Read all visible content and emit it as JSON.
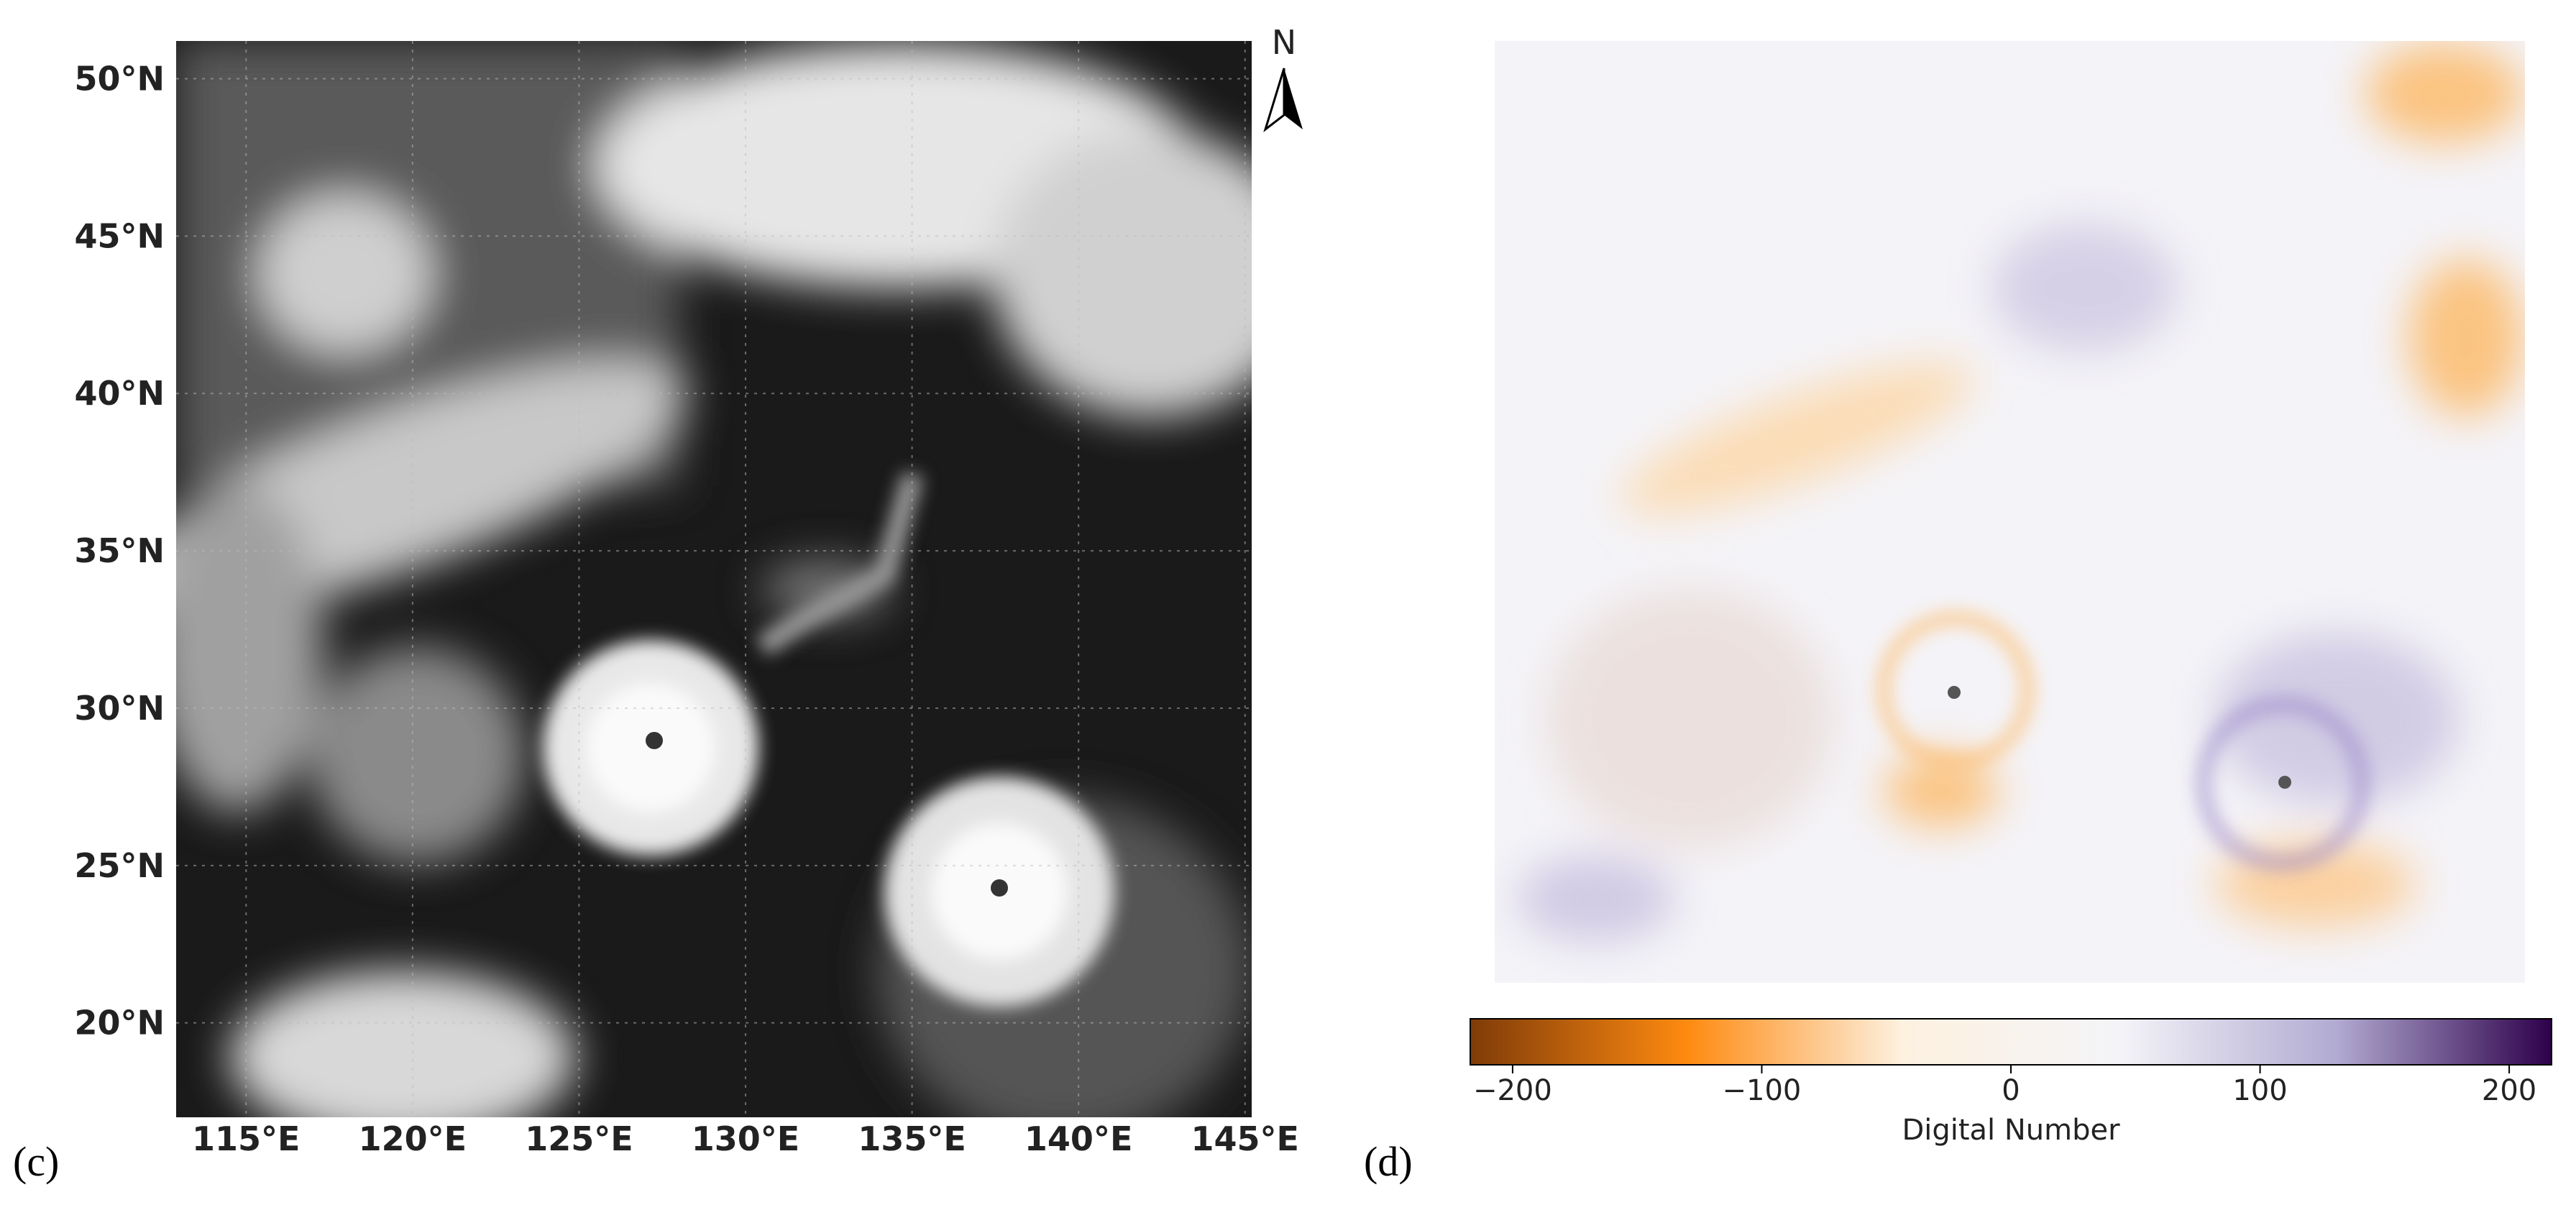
{
  "panel_c": {
    "label": "(c)",
    "north": "N",
    "xlim": [
      112.9,
      145.2
    ],
    "ylim": [
      17.0,
      51.2
    ],
    "xticks": [
      {
        "value": 115,
        "label": "115°E"
      },
      {
        "value": 120,
        "label": "120°E"
      },
      {
        "value": 125,
        "label": "125°E"
      },
      {
        "value": 130,
        "label": "130°E"
      },
      {
        "value": 135,
        "label": "135°E"
      },
      {
        "value": 140,
        "label": "140°E"
      },
      {
        "value": 145,
        "label": "145°E"
      }
    ],
    "yticks": [
      {
        "value": 20,
        "label": "20°N"
      },
      {
        "value": 25,
        "label": "25°N"
      },
      {
        "value": 30,
        "label": "30°N"
      },
      {
        "value": 35,
        "label": "35°N"
      },
      {
        "value": 40,
        "label": "40°N"
      },
      {
        "value": 45,
        "label": "45°N"
      },
      {
        "value": 50,
        "label": "50°N"
      }
    ]
  },
  "panel_d": {
    "label": "(d)",
    "colorbar": {
      "label": "Digital Number",
      "lim": [
        -217,
        217
      ],
      "ticks": [
        {
          "value": -200,
          "label": "−200"
        },
        {
          "value": -100,
          "label": "−100"
        },
        0,
        100,
        200
      ],
      "colors": [
        "#7f3b08",
        "#fe8a10",
        "#fdf1e0",
        "#f4f4f8",
        "#b2abd2",
        "#2d004b"
      ]
    }
  }
}
